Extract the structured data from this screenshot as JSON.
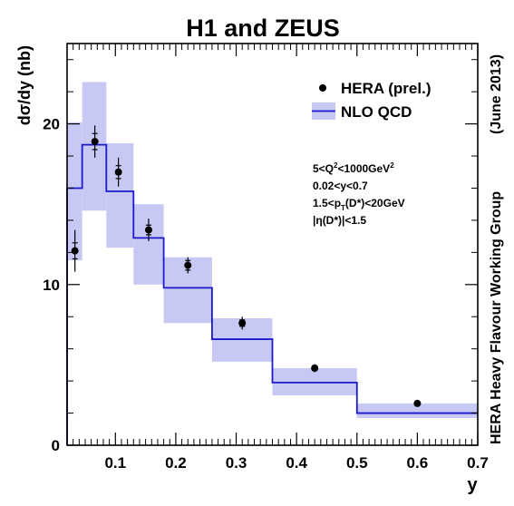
{
  "chart_data": {
    "type": "line",
    "title": "H1 and ZEUS",
    "xlabel": "y",
    "ylabel": "dσ/dy (nb)",
    "xlim": [
      0.02,
      0.7
    ],
    "ylim": [
      0,
      25
    ],
    "xticks": [
      0.1,
      0.2,
      0.3,
      0.4,
      0.5,
      0.6,
      0.7
    ],
    "xtick_labels": [
      "0.1",
      "0.2",
      "0.3",
      "0.4",
      "0.5",
      "0.6",
      "0.7"
    ],
    "yticks": [
      0,
      10,
      20
    ],
    "ytick_labels": [
      "0",
      "10",
      "20"
    ],
    "legend_position": "top-right",
    "side_label": "HERA Heavy Flavour Working Group",
    "side_date": "(June 2013)",
    "cuts": [
      {
        "pre": "5<Q",
        "sup": "2",
        "post": "<1000GeV",
        "sup2": "2"
      },
      {
        "pre": "0.02<y<0.7"
      },
      {
        "pre": "1.5<p",
        "sub": "T",
        "post": "(D*)<20GeV"
      },
      {
        "pre": "|η(D*)|<1.5"
      }
    ],
    "colors": {
      "theory_line": "#1a1acc",
      "theory_band": "#c8c8f5",
      "data": "#000000"
    },
    "series": [
      {
        "name": "HERA (prel.)",
        "kind": "points",
        "x": [
          0.033,
          0.066,
          0.105,
          0.155,
          0.22,
          0.31,
          0.43,
          0.6
        ],
        "y": [
          12.1,
          18.9,
          17.0,
          13.4,
          11.2,
          7.6,
          4.8,
          2.6
        ],
        "err_stat": [
          0.5,
          0.5,
          0.4,
          0.3,
          0.3,
          0.2,
          0.15,
          0.1
        ],
        "err_tot": [
          1.3,
          1.0,
          0.9,
          0.7,
          0.5,
          0.4,
          0.25,
          0.15
        ]
      },
      {
        "name": "NLO QCD",
        "kind": "histogram-band",
        "bin_edges": [
          0.02,
          0.045,
          0.085,
          0.13,
          0.18,
          0.26,
          0.36,
          0.5,
          0.7
        ],
        "central": [
          16.0,
          18.7,
          15.8,
          12.9,
          9.8,
          6.6,
          3.9,
          2.0
        ],
        "band_low": [
          11.5,
          14.6,
          12.3,
          10.0,
          7.6,
          5.2,
          3.1,
          1.7
        ],
        "band_high": [
          20.1,
          22.6,
          18.8,
          15.0,
          11.7,
          7.9,
          4.8,
          2.6
        ]
      }
    ]
  }
}
